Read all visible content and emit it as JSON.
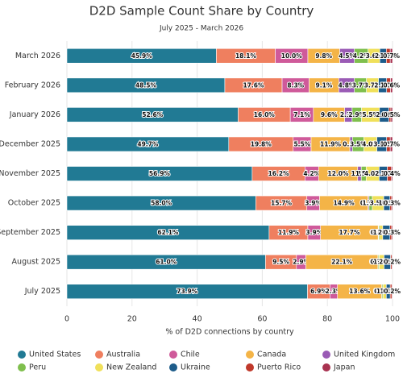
{
  "chart_data": {
    "type": "stacked-barh",
    "title": "D2D Sample Count Share by Country",
    "subtitle": "July 2025 - March 2026",
    "x_label": "% of D2D connections by country",
    "categories": [
      "March 2026",
      "February 2026",
      "January 2026",
      "December 2025",
      "November 2025",
      "October 2025",
      "September 2025",
      "August 2025",
      "July 2025"
    ],
    "xlim": [
      0,
      100
    ],
    "xticks": [
      0,
      20,
      40,
      60,
      80,
      100
    ],
    "grid": true,
    "series": [
      {
        "name": "United States",
        "color": "#217a94",
        "values": [
          45.9,
          48.5,
          52.6,
          49.7,
          56.9,
          58.0,
          62.1,
          61.0,
          73.9
        ],
        "value_labels": [
          "45.9%",
          "48.5%",
          "52.6%",
          "49.7%",
          "56.9%",
          "58.0%",
          "62.1%",
          "61.0%",
          "73.9%"
        ]
      },
      {
        "name": "Australia",
        "color": "#ef7f5f",
        "values": [
          18.1,
          17.6,
          16.0,
          19.8,
          16.2,
          15.7,
          11.9,
          9.5,
          6.9
        ],
        "value_labels": [
          "18.1%",
          "17.6%",
          "16.0%",
          "19.8%",
          "16.2%",
          "15.7%",
          "11.9%",
          "9.5%",
          "6.9%"
        ]
      },
      {
        "name": "Chile",
        "color": "#cf5a9a",
        "values": [
          10.0,
          8.3,
          7.1,
          5.5,
          4.2,
          3.9,
          3.9,
          2.9,
          2.3
        ],
        "value_labels": [
          "10.0%",
          "8.3%",
          "7.1%",
          "5.5%",
          "4.2%",
          "3.9%",
          "3.9%",
          "2.9%",
          "2.3%"
        ]
      },
      {
        "name": "Canada",
        "color": "#f4b447",
        "values": [
          9.8,
          9.1,
          9.6,
          11.9,
          12.0,
          14.9,
          17.7,
          22.1,
          13.6
        ],
        "value_labels": [
          "9.8%",
          "9.1%",
          "9.6%",
          "11.9%",
          "12.0%",
          "14.9%",
          "17.7%",
          "22.1%",
          "13.6%"
        ]
      },
      {
        "name": "United Kingdom",
        "color": "#9a5bb5",
        "values": [
          4.5,
          4.8,
          2.3,
          0.8,
          1.1,
          0.3,
          0.1,
          0.1,
          0.1
        ],
        "value_labels": [
          "4.5%",
          "4.8%",
          "2.3%",
          "0.8%",
          "1.1%",
          "0.3%",
          "0.1%",
          "0.1%",
          "0.1%"
        ]
      },
      {
        "name": "Peru",
        "color": "#7fbf4d",
        "values": [
          4.2,
          3.7,
          2.9,
          3.5,
          1.5,
          1.0,
          0.3,
          0.3,
          0.3
        ],
        "value_labels": [
          "4.2%",
          "3.7%",
          "2.9%",
          "3.5%",
          "1.5%",
          "1.0%",
          "0.3%",
          "0.3%",
          "0.3%"
        ]
      },
      {
        "name": "New Zealand",
        "color": "#f0e05a",
        "values": [
          3.6,
          3.7,
          5.5,
          4.0,
          4.0,
          3.5,
          1.0,
          1.5,
          1.0
        ],
        "value_labels": [
          "3.6%",
          "3.7%",
          "5.5%",
          "4.0%",
          "4.0%",
          "3.5%",
          "1.0%",
          "1.5%",
          "1.0%"
        ]
      },
      {
        "name": "Ukraine",
        "color": "#1d5c8a",
        "values": [
          2.0,
          2.5,
          2.9,
          3.0,
          2.5,
          1.9,
          2.2,
          2.0,
          1.2
        ],
        "value_labels": [
          "2.0%",
          "2.5%",
          "2.9%",
          "3.0%",
          "2.5%",
          "1.9%",
          "2.2%",
          "2.0%",
          "1.2%"
        ]
      },
      {
        "name": "Puerto Rico",
        "color": "#c0392b",
        "values": [
          1.2,
          1.2,
          0.6,
          1.1,
          1.2,
          0.5,
          0.5,
          0.4,
          0.5
        ],
        "value_labels": [
          "1.2%",
          "1.2%",
          "0.6%",
          "1.1%",
          "1.2%",
          "0.5%",
          "0.5%",
          "0.4%",
          "0.5%"
        ]
      },
      {
        "name": "Japan",
        "color": "#a83250",
        "values": [
          0.7,
          0.6,
          0.5,
          0.7,
          0.4,
          0.3,
          0.3,
          0.2,
          0.2
        ],
        "value_labels": [
          "0.7%",
          "0.6%",
          "0.5%",
          "0.7%",
          "0.4%",
          "0.3%",
          "0.3%",
          "0.2%",
          "0.2%"
        ]
      }
    ]
  }
}
